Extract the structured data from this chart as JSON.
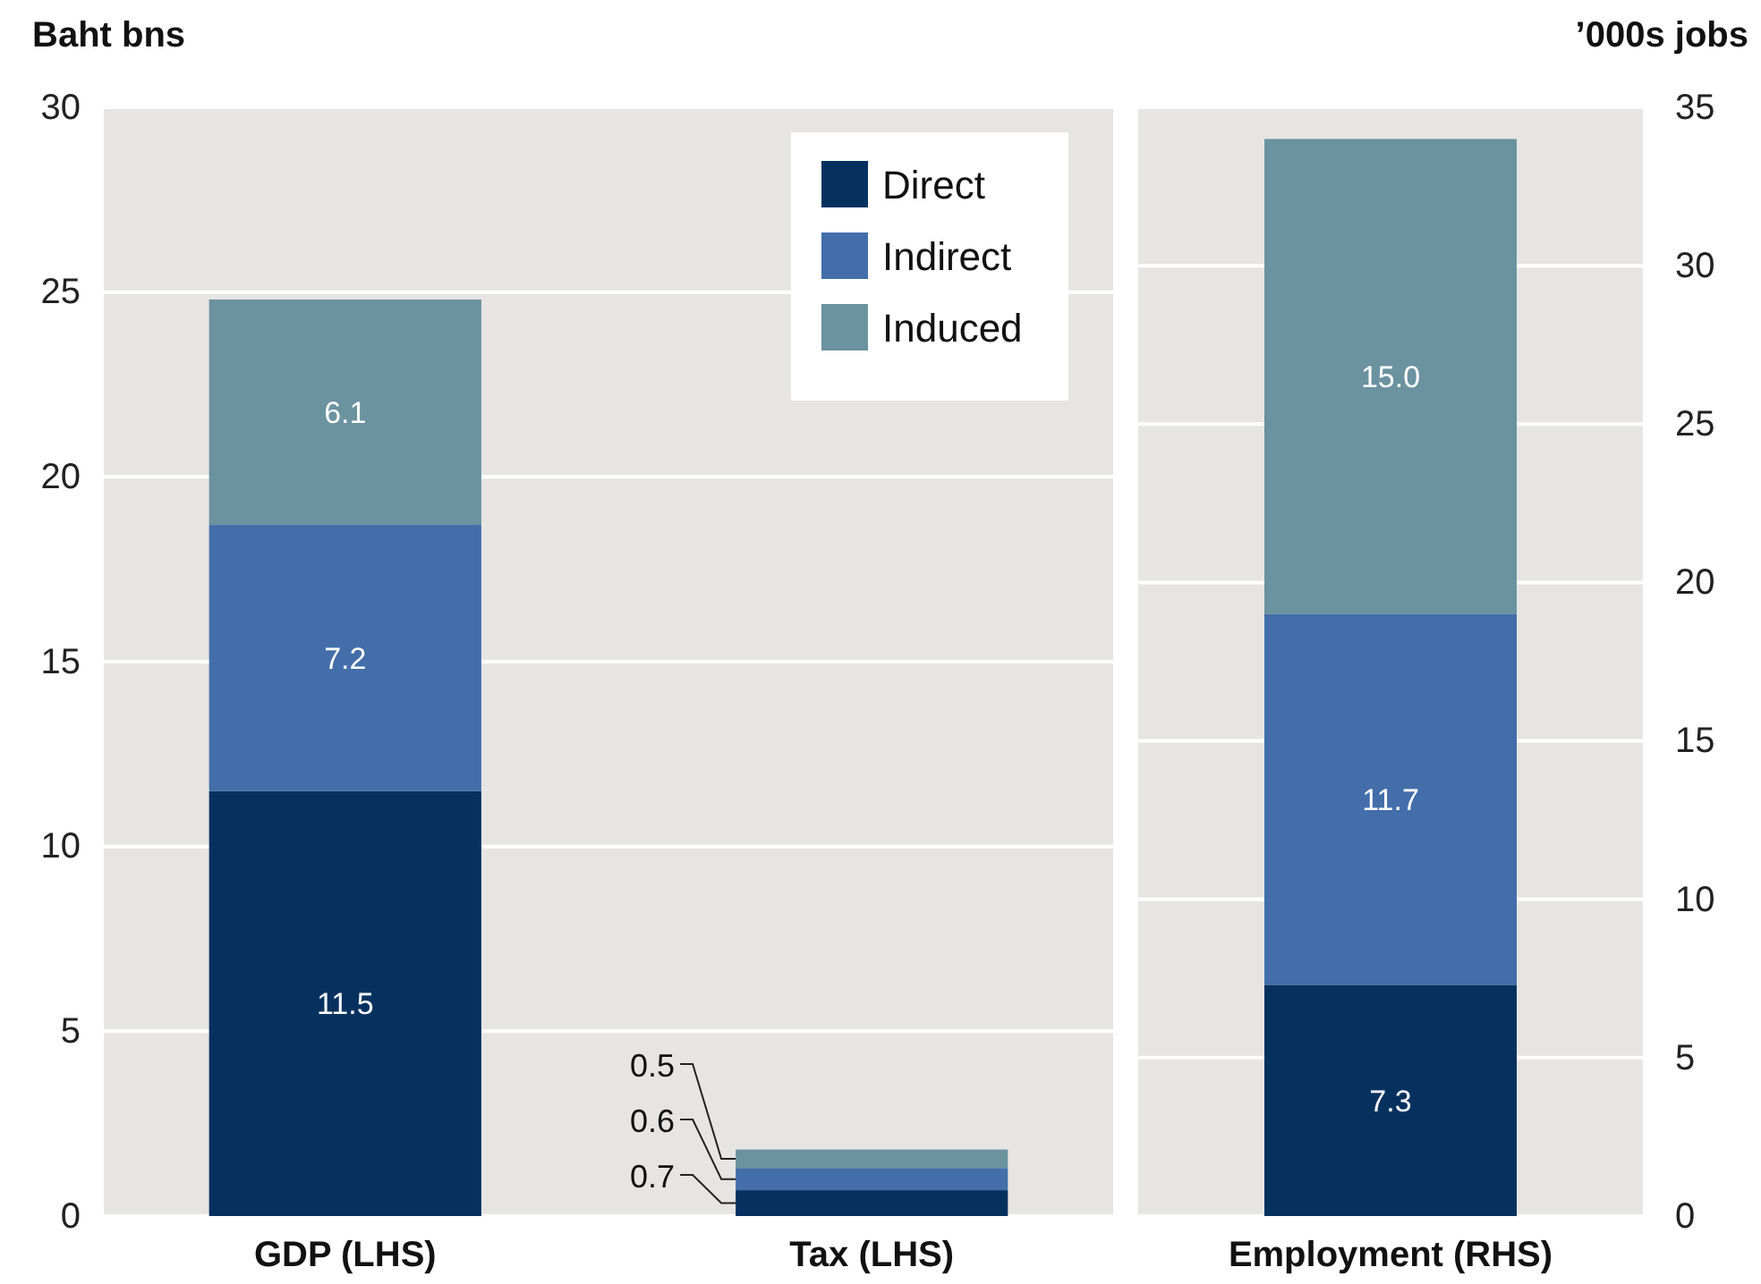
{
  "chart_data": [
    {
      "type": "bar",
      "stacked": true,
      "ylabel": "Baht bns",
      "categories": [
        "GDP (LHS)",
        "Tax (LHS)"
      ],
      "series": [
        {
          "name": "Direct",
          "color": "#06315f",
          "values": [
            11.5,
            0.7
          ]
        },
        {
          "name": "Indirect",
          "color": "#436ea9",
          "values": [
            7.2,
            0.6
          ]
        },
        {
          "name": "Induced",
          "color": "#6b929f",
          "values": [
            6.1,
            0.5
          ]
        }
      ],
      "ylim": [
        0,
        30
      ],
      "yticks": [
        0,
        5,
        10,
        15,
        20,
        25,
        30
      ],
      "grid": "y",
      "data_labels": true,
      "legend": "top right"
    },
    {
      "type": "bar",
      "stacked": true,
      "y2label": "’000s jobs",
      "categories": [
        "Employment (RHS)"
      ],
      "series": [
        {
          "color": "#06315f",
          "values": [
            7.3
          ],
          "value_labels": [
            "7.3"
          ],
          "axis": "y2"
        },
        {
          "color": "#436ea9",
          "values": [
            11.7
          ],
          "value_labels": [
            "11.7"
          ],
          "axis": "y2"
        },
        {
          "color": "#6b929f",
          "values": [
            15
          ],
          "value_labels": [
            "15.0"
          ],
          "axis": "y2"
        }
      ],
      "y2lim": [
        0,
        35
      ],
      "y2ticks": [
        0,
        5,
        10,
        15,
        20,
        25,
        30,
        35
      ],
      "grid": "y"
    }
  ]
}
